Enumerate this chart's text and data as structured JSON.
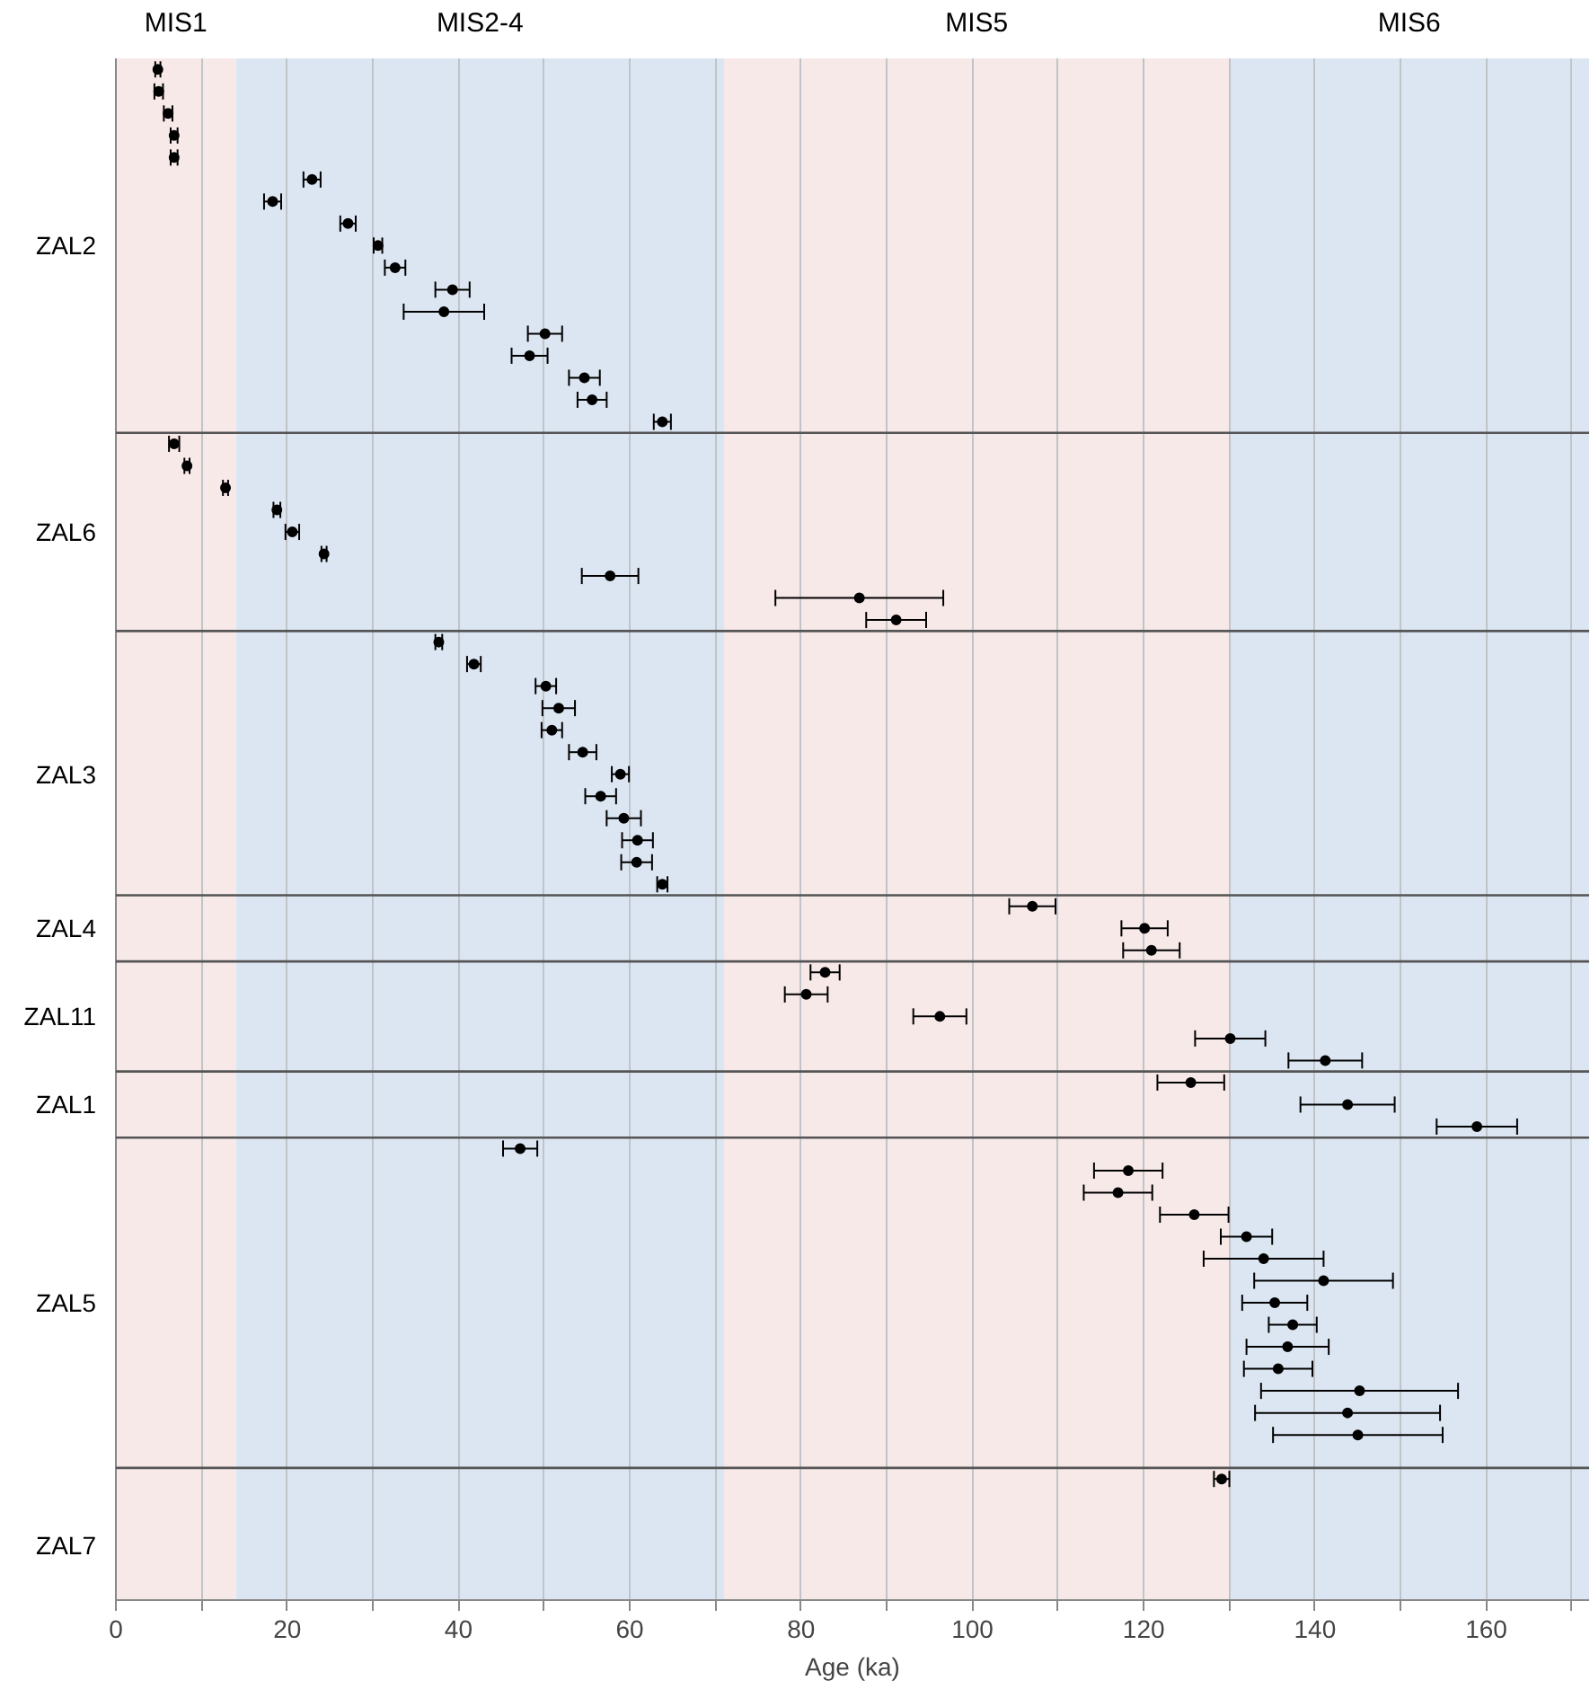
{
  "chart_data": {
    "type": "scatter",
    "orientation": "horizontal",
    "xlabel": "Age (ka)",
    "categories": [
      null,
      null,
      null,
      null,
      null,
      null,
      null,
      null,
      "ZAL2",
      null,
      null,
      null,
      null,
      null,
      null,
      null,
      null,
      null,
      null,
      null,
      null,
      "ZAL6",
      null,
      null,
      null,
      null,
      null,
      null,
      null,
      null,
      null,
      null,
      "ZAL3",
      null,
      null,
      null,
      null,
      null,
      null,
      "ZAL4",
      null,
      null,
      null,
      "ZAL11",
      null,
      null,
      null,
      "ZAL1",
      null,
      null,
      null,
      null,
      null,
      null,
      null,
      null,
      "ZAL5",
      null,
      null,
      null,
      null,
      null,
      null,
      null,
      null,
      null,
      null,
      "ZAL7",
      null,
      null
    ],
    "xlim": [
      0,
      172
    ],
    "xticks": [
      0,
      {
        "value": 10,
        "label": null
      },
      20,
      {
        "value": 30,
        "label": null
      },
      40,
      {
        "value": 50,
        "label": null
      },
      60,
      {
        "value": 70,
        "label": null
      },
      80,
      {
        "value": 90,
        "label": null
      },
      100,
      {
        "value": 110,
        "label": null
      },
      120,
      {
        "value": 130,
        "label": null
      },
      140,
      {
        "value": 150,
        "label": null
      },
      160,
      {
        "value": 170,
        "label": null
      }
    ],
    "grid": "x",
    "marker": "circle",
    "bands": [
      {
        "axis": "x",
        "from": 0,
        "to": 14,
        "label": "MIS1",
        "color": "#f8e9e9"
      },
      {
        "axis": "x",
        "from": 14,
        "to": 71,
        "label": "MIS2-4",
        "color": "#dce6f2"
      },
      {
        "axis": "x",
        "from": 71,
        "to": 130,
        "label": "MIS5",
        "color": "#f8e9e9"
      },
      {
        "axis": "x",
        "from": 130,
        "to": 172,
        "label": "MIS6",
        "color": "#dce6f2"
      }
    ],
    "series": [
      {
        "color": "#000000",
        "values": [
          4.9,
          5.0,
          6.1,
          6.8,
          6.8,
          22.9,
          18.3,
          27.1,
          30.6,
          32.6,
          39.3,
          38.3,
          50.1,
          48.3,
          54.7,
          55.6,
          63.8,
          null,
          null,
          null,
          null,
          null,
          null,
          null,
          null,
          null,
          null,
          null,
          null,
          null,
          null,
          null,
          null,
          null,
          null,
          null,
          null,
          null,
          null,
          null,
          null,
          null,
          null,
          null,
          null,
          null,
          null,
          null,
          null,
          null,
          null,
          null,
          null,
          null,
          null,
          null,
          null,
          null,
          null,
          null,
          null,
          null,
          null,
          null,
          null,
          null,
          null,
          null,
          null,
          null
        ],
        "errors": [
          0.3,
          0.5,
          0.5,
          0.4,
          0.4,
          1.0,
          1.0,
          0.9,
          0.5,
          1.2,
          2.0,
          4.7,
          2.0,
          2.1,
          1.8,
          1.7,
          1.0,
          null,
          null,
          null,
          null,
          null,
          null,
          null,
          null,
          null,
          null,
          null,
          null,
          null,
          null,
          null,
          null,
          null,
          null,
          null,
          null,
          null,
          null,
          null,
          null,
          null,
          null,
          null,
          null,
          null,
          null,
          null,
          null,
          null,
          null,
          null,
          null,
          null,
          null,
          null,
          null,
          null,
          null,
          null,
          null,
          null,
          null,
          null,
          null,
          null,
          null,
          null,
          null,
          null
        ]
      },
      {
        "color": "#000000",
        "values": [
          null,
          null,
          null,
          null,
          null,
          null,
          null,
          null,
          null,
          null,
          null,
          null,
          null,
          null,
          null,
          null,
          null,
          6.8,
          8.3,
          12.8,
          18.8,
          20.6,
          24.3,
          57.7,
          86.8,
          91.1,
          null,
          null,
          null,
          null,
          null,
          null,
          null,
          null,
          null,
          null,
          null,
          null,
          null,
          null,
          null,
          null,
          null,
          null,
          null,
          null,
          null,
          null,
          null,
          null,
          null,
          null,
          null,
          null,
          null,
          null,
          null,
          null,
          null,
          null,
          null,
          null,
          null,
          null,
          null,
          null,
          null,
          null,
          null,
          null
        ],
        "errors": [
          null,
          null,
          null,
          null,
          null,
          null,
          null,
          null,
          null,
          null,
          null,
          null,
          null,
          null,
          null,
          null,
          null,
          0.6,
          0.3,
          0.3,
          0.4,
          0.8,
          0.3,
          3.3,
          9.8,
          3.5,
          null,
          null,
          null,
          null,
          null,
          null,
          null,
          null,
          null,
          null,
          null,
          null,
          null,
          null,
          null,
          null,
          null,
          null,
          null,
          null,
          null,
          null,
          null,
          null,
          null,
          null,
          null,
          null,
          null,
          null,
          null,
          null,
          null,
          null,
          null,
          null,
          null,
          null,
          null,
          null,
          null,
          null,
          null,
          null
        ]
      },
      {
        "color": "#000000",
        "values": [
          null,
          null,
          null,
          null,
          null,
          null,
          null,
          null,
          null,
          null,
          null,
          null,
          null,
          null,
          null,
          null,
          null,
          null,
          null,
          null,
          null,
          null,
          null,
          null,
          null,
          null,
          37.7,
          41.8,
          50.2,
          51.7,
          50.9,
          54.5,
          58.9,
          56.6,
          59.3,
          60.9,
          60.8,
          63.8,
          null,
          null,
          null,
          null,
          null,
          null,
          null,
          null,
          null,
          null,
          null,
          null,
          null,
          null,
          null,
          null,
          null,
          null,
          null,
          null,
          null,
          null,
          null,
          null,
          null,
          null,
          null,
          null,
          null,
          null,
          null,
          null
        ],
        "errors": [
          null,
          null,
          null,
          null,
          null,
          null,
          null,
          null,
          null,
          null,
          null,
          null,
          null,
          null,
          null,
          null,
          null,
          null,
          null,
          null,
          null,
          null,
          null,
          null,
          null,
          null,
          0.4,
          0.8,
          1.2,
          1.9,
          1.2,
          1.6,
          1.0,
          1.8,
          2.0,
          1.8,
          1.8,
          0.6,
          null,
          null,
          null,
          null,
          null,
          null,
          null,
          null,
          null,
          null,
          null,
          null,
          null,
          null,
          null,
          null,
          null,
          null,
          null,
          null,
          null,
          null,
          null,
          null,
          null,
          null,
          null,
          null,
          null,
          null,
          null,
          null
        ]
      },
      {
        "color": "#000000",
        "values": [
          null,
          null,
          null,
          null,
          null,
          null,
          null,
          null,
          null,
          null,
          null,
          null,
          null,
          null,
          null,
          null,
          null,
          null,
          null,
          null,
          null,
          null,
          null,
          null,
          null,
          null,
          null,
          null,
          null,
          null,
          null,
          null,
          null,
          null,
          null,
          null,
          null,
          null,
          107.0,
          120.1,
          120.9,
          null,
          null,
          null,
          null,
          null,
          null,
          null,
          null,
          null,
          null,
          null,
          null,
          null,
          null,
          null,
          null,
          null,
          null,
          null,
          null,
          null,
          null,
          null,
          null,
          null,
          null,
          null,
          null,
          null
        ],
        "errors": [
          null,
          null,
          null,
          null,
          null,
          null,
          null,
          null,
          null,
          null,
          null,
          null,
          null,
          null,
          null,
          null,
          null,
          null,
          null,
          null,
          null,
          null,
          null,
          null,
          null,
          null,
          null,
          null,
          null,
          null,
          null,
          null,
          null,
          null,
          null,
          null,
          null,
          null,
          2.7,
          2.7,
          3.3,
          null,
          null,
          null,
          null,
          null,
          null,
          null,
          null,
          null,
          null,
          null,
          null,
          null,
          null,
          null,
          null,
          null,
          null,
          null,
          null,
          null,
          null,
          null,
          null,
          null,
          null,
          null,
          null,
          null
        ]
      },
      {
        "color": "#000000",
        "values": [
          null,
          null,
          null,
          null,
          null,
          null,
          null,
          null,
          null,
          null,
          null,
          null,
          null,
          null,
          null,
          null,
          null,
          null,
          null,
          null,
          null,
          null,
          null,
          null,
          null,
          null,
          null,
          null,
          null,
          null,
          null,
          null,
          null,
          null,
          null,
          null,
          null,
          null,
          null,
          null,
          null,
          82.8,
          80.6,
          96.2,
          130.1,
          141.2,
          null,
          null,
          null,
          null,
          null,
          null,
          null,
          null,
          null,
          null,
          null,
          null,
          null,
          null,
          null,
          null,
          null,
          null,
          null,
          null,
          null,
          null,
          null,
          null
        ],
        "errors": [
          null,
          null,
          null,
          null,
          null,
          null,
          null,
          null,
          null,
          null,
          null,
          null,
          null,
          null,
          null,
          null,
          null,
          null,
          null,
          null,
          null,
          null,
          null,
          null,
          null,
          null,
          null,
          null,
          null,
          null,
          null,
          null,
          null,
          null,
          null,
          null,
          null,
          null,
          null,
          null,
          null,
          1.7,
          2.5,
          3.1,
          4.1,
          4.3,
          null,
          null,
          null,
          null,
          null,
          null,
          null,
          null,
          null,
          null,
          null,
          null,
          null,
          null,
          null,
          null,
          null,
          null,
          null,
          null,
          null,
          null,
          null,
          null
        ]
      },
      {
        "color": "#000000",
        "values": [
          null,
          null,
          null,
          null,
          null,
          null,
          null,
          null,
          null,
          null,
          null,
          null,
          null,
          null,
          null,
          null,
          null,
          null,
          null,
          null,
          null,
          null,
          null,
          null,
          null,
          null,
          null,
          null,
          null,
          null,
          null,
          null,
          null,
          null,
          null,
          null,
          null,
          null,
          null,
          null,
          null,
          null,
          null,
          null,
          null,
          null,
          125.5,
          143.8,
          158.9,
          null,
          null,
          null,
          null,
          null,
          null,
          null,
          null,
          null,
          null,
          null,
          null,
          null,
          null,
          null,
          null,
          null,
          null,
          null,
          null,
          null
        ],
        "errors": [
          null,
          null,
          null,
          null,
          null,
          null,
          null,
          null,
          null,
          null,
          null,
          null,
          null,
          null,
          null,
          null,
          null,
          null,
          null,
          null,
          null,
          null,
          null,
          null,
          null,
          null,
          null,
          null,
          null,
          null,
          null,
          null,
          null,
          null,
          null,
          null,
          null,
          null,
          null,
          null,
          null,
          null,
          null,
          null,
          null,
          null,
          3.9,
          5.5,
          4.7,
          null,
          null,
          null,
          null,
          null,
          null,
          null,
          null,
          null,
          null,
          null,
          null,
          null,
          null,
          null,
          null,
          null,
          null,
          null,
          null,
          null
        ]
      },
      {
        "color": "#000000",
        "values": [
          null,
          null,
          null,
          null,
          null,
          null,
          null,
          null,
          null,
          null,
          null,
          null,
          null,
          null,
          null,
          null,
          null,
          null,
          null,
          null,
          null,
          null,
          null,
          null,
          null,
          null,
          null,
          null,
          null,
          null,
          null,
          null,
          null,
          null,
          null,
          null,
          null,
          null,
          null,
          null,
          null,
          null,
          null,
          null,
          null,
          null,
          null,
          null,
          null,
          47.2,
          118.2,
          117.0,
          125.9,
          132.0,
          134.0,
          141.0,
          135.3,
          137.4,
          136.8,
          135.7,
          145.2,
          143.8,
          145.0,
          null,
          null,
          null,
          null,
          null,
          null,
          null
        ],
        "errors": [
          null,
          null,
          null,
          null,
          null,
          null,
          null,
          null,
          null,
          null,
          null,
          null,
          null,
          null,
          null,
          null,
          null,
          null,
          null,
          null,
          null,
          null,
          null,
          null,
          null,
          null,
          null,
          null,
          null,
          null,
          null,
          null,
          null,
          null,
          null,
          null,
          null,
          null,
          null,
          null,
          null,
          null,
          null,
          null,
          null,
          null,
          null,
          null,
          null,
          2.0,
          4.0,
          4.0,
          4.0,
          3.0,
          7.0,
          8.1,
          3.8,
          2.8,
          4.8,
          4.0,
          11.5,
          10.8,
          9.9,
          null,
          null,
          null,
          null,
          null,
          null,
          null
        ]
      },
      {
        "color": "#000000",
        "values": [
          null,
          null,
          null,
          null,
          null,
          null,
          null,
          null,
          null,
          null,
          null,
          null,
          null,
          null,
          null,
          null,
          null,
          null,
          null,
          null,
          null,
          null,
          null,
          null,
          null,
          null,
          null,
          null,
          null,
          null,
          null,
          null,
          null,
          null,
          null,
          null,
          null,
          null,
          null,
          null,
          null,
          null,
          null,
          null,
          null,
          null,
          null,
          null,
          null,
          null,
          null,
          null,
          null,
          null,
          null,
          null,
          null,
          null,
          null,
          null,
          null,
          null,
          null,
          null,
          129.1,
          null,
          null,
          null,
          null,
          null
        ],
        "errors": [
          null,
          null,
          null,
          null,
          null,
          null,
          null,
          null,
          null,
          null,
          null,
          null,
          null,
          null,
          null,
          null,
          null,
          null,
          null,
          null,
          null,
          null,
          null,
          null,
          null,
          null,
          null,
          null,
          null,
          null,
          null,
          null,
          null,
          null,
          null,
          null,
          null,
          null,
          null,
          null,
          null,
          null,
          null,
          null,
          null,
          null,
          null,
          null,
          null,
          null,
          null,
          null,
          null,
          null,
          null,
          null,
          null,
          null,
          null,
          null,
          null,
          null,
          null,
          null,
          0.9,
          null,
          null,
          null,
          null,
          null
        ]
      }
    ]
  }
}
